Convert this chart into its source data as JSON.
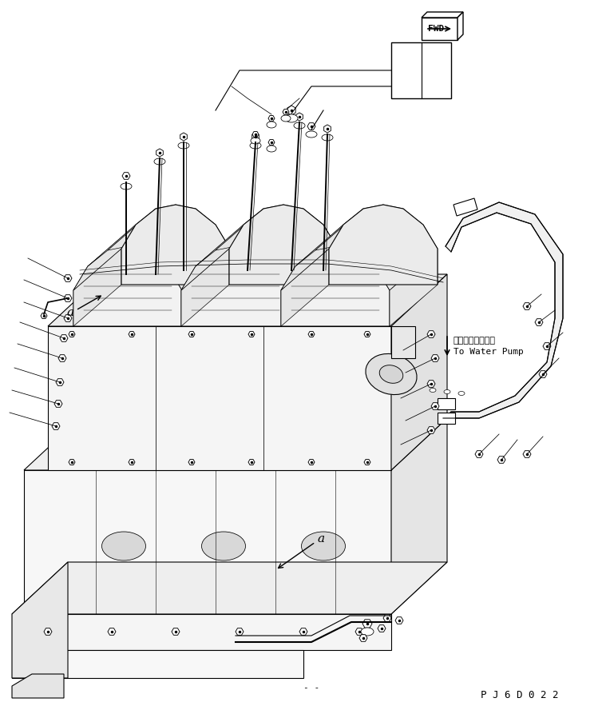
{
  "bg_color": "#ffffff",
  "line_color": "#000000",
  "figsize": [
    7.64,
    8.98
  ],
  "dpi": 100,
  "fwd_label": "FWD",
  "water_pump_jp": "ウォータポンプヘ",
  "water_pump_en": "To Water Pump",
  "part_code": "P J 6 D 0 2 2",
  "label_a": "a",
  "dash_label": "- -"
}
